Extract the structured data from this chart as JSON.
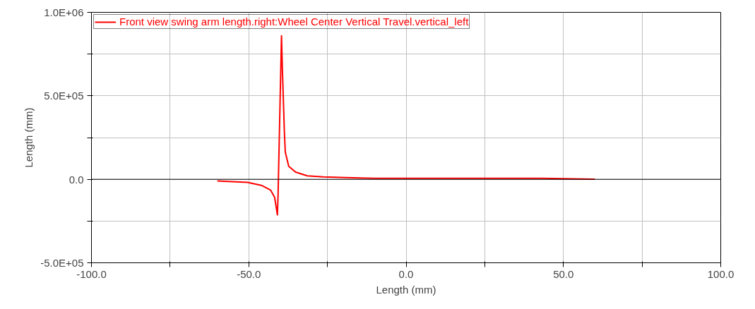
{
  "chart_data": {
    "type": "line",
    "xlabel": "Length (mm)",
    "ylabel": "Length (mm)",
    "series": [
      {
        "name": "Front view swing arm length.right:Wheel Center Vertical Travel.vertical_left",
        "color": "#ff0000",
        "x": [
          -60.0,
          -50.4,
          -46.0,
          -43.1,
          -41.8,
          -40.9,
          -40.7,
          -39.6,
          -39.3,
          -38.7,
          -38.4,
          -37.3,
          -35.1,
          -31.4,
          -26.3,
          -19.0,
          -10.0,
          43.0,
          60.0
        ],
        "values": [
          -10000,
          -18000,
          -36000,
          -64000,
          -107000,
          -213000,
          -100000,
          860000,
          646000,
          290000,
          163000,
          78000,
          43000,
          21000,
          14000,
          10000,
          6000,
          6000,
          1000
        ]
      }
    ],
    "xlim": [
      -100,
      100
    ],
    "xticks": [
      {
        "value": -100,
        "label": "-100.0"
      },
      {
        "value": -75,
        "label": null
      },
      {
        "value": -50,
        "label": "-50.0"
      },
      {
        "value": -25,
        "label": null
      },
      {
        "value": 0,
        "label": "0.0"
      },
      {
        "value": 25,
        "label": null
      },
      {
        "value": 50,
        "label": "50.0"
      },
      {
        "value": 75,
        "label": null
      },
      {
        "value": 100,
        "label": "100.0"
      }
    ],
    "ylim": [
      -500000,
      1000000
    ],
    "yticks": [
      {
        "value": -500000,
        "label": "-5.0E+05"
      },
      {
        "value": -250000,
        "label": null
      },
      {
        "value": 0,
        "label": "0.0"
      },
      {
        "value": 250000,
        "label": null
      },
      {
        "value": 500000,
        "label": "5.0E+05"
      },
      {
        "value": 750000,
        "label": null
      },
      {
        "value": 1000000,
        "label": "1.0E+06"
      }
    ],
    "ref_lines": [
      {
        "axis": "y",
        "value": 0,
        "color": "#000000"
      }
    ],
    "grid": true,
    "legend": "top left",
    "marker": "none",
    "line_style": "solid"
  }
}
